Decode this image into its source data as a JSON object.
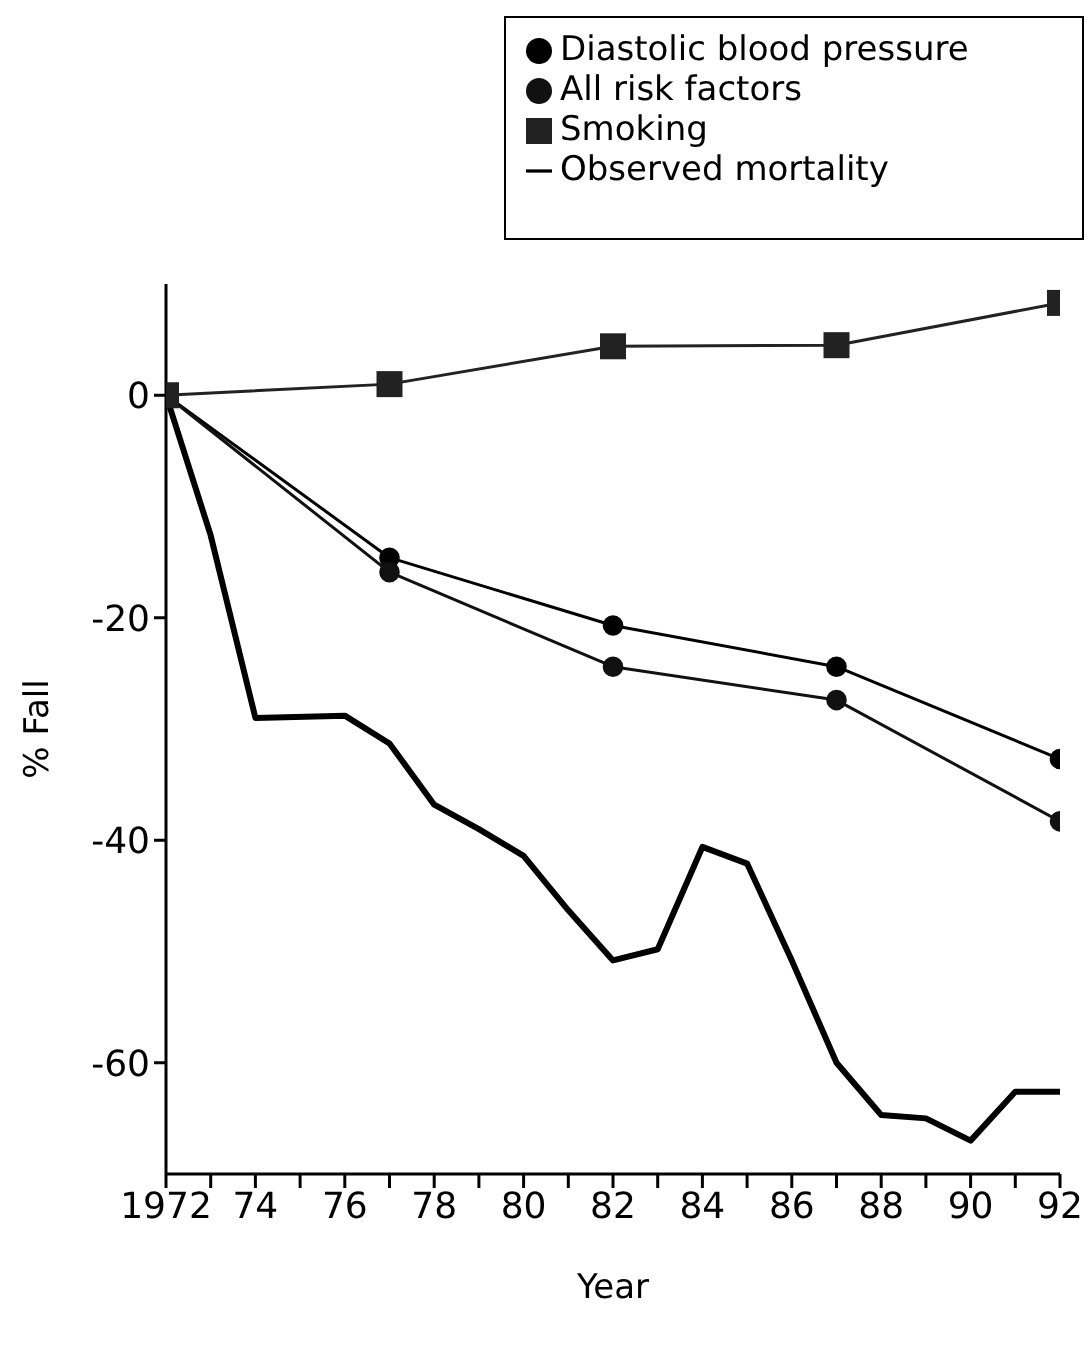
{
  "chart_data": {
    "type": "line",
    "xlabel": "Year",
    "ylabel": "% Fall",
    "xlim": [
      1972,
      1992
    ],
    "ylim": [
      -70,
      10
    ],
    "xticks": [
      1972,
      {
        "value": 1973,
        "label": null
      },
      {
        "value": 1974,
        "label": "74"
      },
      {
        "value": 1975,
        "label": null
      },
      {
        "value": 1976,
        "label": "76"
      },
      {
        "value": 1977,
        "label": null
      },
      {
        "value": 1978,
        "label": "78"
      },
      {
        "value": 1979,
        "label": null
      },
      {
        "value": 1980,
        "label": "80"
      },
      {
        "value": 1981,
        "label": null
      },
      {
        "value": 1982,
        "label": "82"
      },
      {
        "value": 1983,
        "label": null
      },
      {
        "value": 1984,
        "label": "84"
      },
      {
        "value": 1985,
        "label": null
      },
      {
        "value": 1986,
        "label": "86"
      },
      {
        "value": 1987,
        "label": null
      },
      {
        "value": 1988,
        "label": "88"
      },
      {
        "value": 1989,
        "label": null
      },
      {
        "value": 1990,
        "label": "90"
      },
      {
        "value": 1991,
        "label": null
      },
      {
        "value": 1992,
        "label": "92"
      }
    ],
    "yticks": [
      0,
      -20,
      -40,
      -60
    ],
    "grid": false,
    "legend": "top right",
    "line_style": "solid",
    "series": [
      {
        "name": "Diastolic blood pressure",
        "color": "#000000",
        "marker": "circle",
        "x": [
          1972,
          1977,
          1982,
          1987,
          1992
        ],
        "values": [
          0,
          -14.6,
          -20.7,
          -24.4,
          -32.7
        ]
      },
      {
        "name": "All risk factors",
        "color": "#111111",
        "marker": "circle",
        "x": [
          1972,
          1977,
          1982,
          1987,
          1992
        ],
        "values": [
          0,
          -15.9,
          -24.4,
          -27.4,
          -38.3
        ]
      },
      {
        "name": "Smoking",
        "color": "#222222",
        "marker": "square",
        "x": [
          1972,
          1977,
          1982,
          1987,
          1992
        ],
        "values": [
          0,
          1.0,
          4.4,
          4.5,
          8.3
        ]
      },
      {
        "name": "Observed mortality",
        "color": "#000000",
        "marker": "none",
        "x": [
          1972,
          1973,
          1974,
          1976,
          1977,
          1978,
          1979,
          1980,
          1981,
          1982,
          1983,
          1984,
          1985,
          1986,
          1987,
          1988,
          1989,
          1990,
          1991,
          1992
        ],
        "values": [
          0,
          -12.6,
          -29,
          -28.8,
          -31.3,
          -36.8,
          -39,
          -41.4,
          -46.3,
          -50.8,
          -49.8,
          -40.6,
          -42.1,
          -50.8,
          -60,
          -64.7,
          -65,
          -67,
          -62.6,
          -62.6
        ]
      }
    ]
  }
}
